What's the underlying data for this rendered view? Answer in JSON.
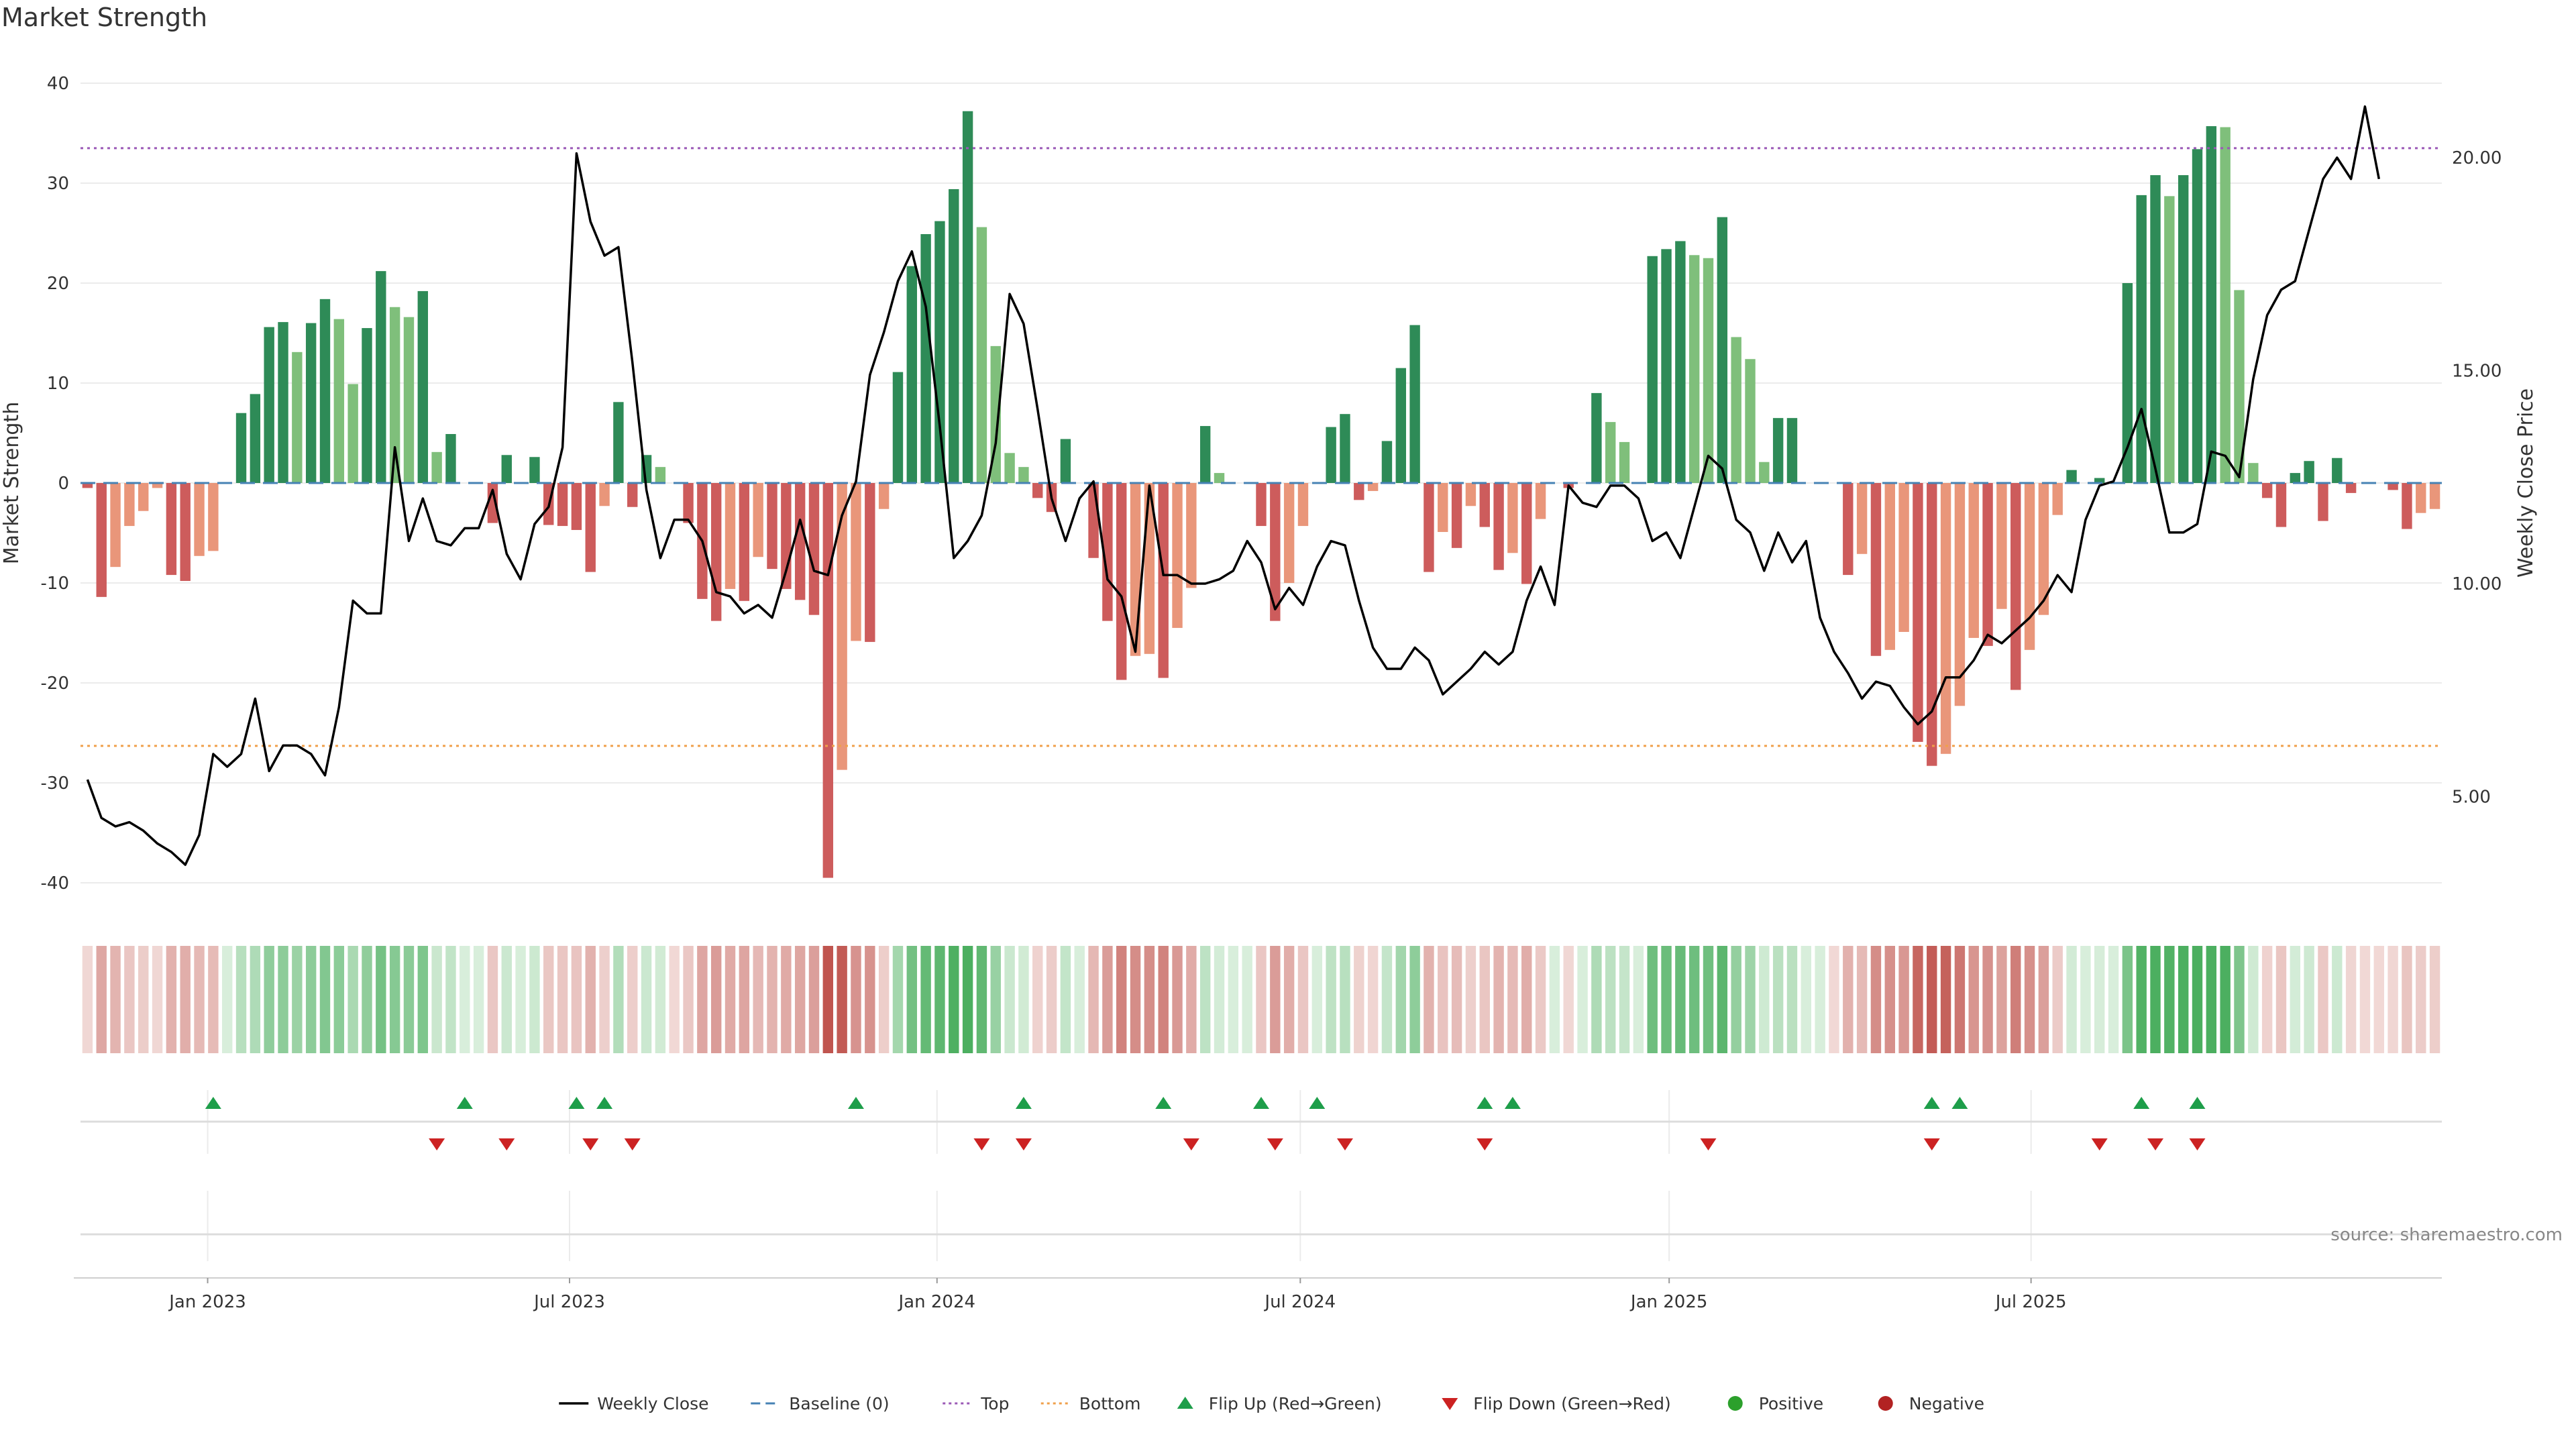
{
  "title": "Market Strength",
  "source": "source: sharemaestro.com",
  "colors": {
    "strong_green": "#2e8b57",
    "light_green": "#7fbf7b",
    "strong_red": "#cd5c5c",
    "light_red": "#e9967a",
    "price_line": "#000000",
    "baseline": "#4682b4",
    "top": "#9b59b6",
    "bottom": "#f0a04b",
    "flip_up": "#1e9e4a",
    "flip_down": "#cc2222",
    "positive": "#2ca02c",
    "negative": "#b22222"
  },
  "legend": [
    {
      "key": "weekly_close",
      "label": "Weekly Close",
      "kind": "line",
      "color": "#000000"
    },
    {
      "key": "baseline",
      "label": "Baseline (0)",
      "kind": "dash",
      "color": "#4682b4"
    },
    {
      "key": "top",
      "label": "Top",
      "kind": "dot",
      "color": "#9b59b6"
    },
    {
      "key": "bottom",
      "label": "Bottom",
      "kind": "dot",
      "color": "#f0a04b"
    },
    {
      "key": "flip_up",
      "label": "Flip Up (Red→Green)",
      "kind": "tri-up",
      "color": "#1e9e4a"
    },
    {
      "key": "flip_down",
      "label": "Flip Down (Green→Red)",
      "kind": "tri-down",
      "color": "#cc2222"
    },
    {
      "key": "positive",
      "label": "Positive",
      "kind": "circle",
      "color": "#2ca02c"
    },
    {
      "key": "negative",
      "label": "Negative",
      "kind": "circle",
      "color": "#b22222"
    }
  ],
  "chart_data": {
    "type": "bar",
    "title": "Market Strength",
    "ylabel": "Market Strength",
    "y2label": "Weekly Close Price",
    "ylim": [
      -43,
      44
    ],
    "y_ticks": [
      40,
      30,
      20,
      10,
      0,
      -10,
      -20,
      -30,
      -40
    ],
    "y2lim": [
      2.6,
      22.3
    ],
    "y2_ticks": [
      {
        "value": 20,
        "label": "20.00"
      },
      {
        "value": 15,
        "label": "15.00"
      },
      {
        "value": 10,
        "label": "10.00"
      },
      {
        "value": 5,
        "label": "5.00"
      }
    ],
    "x_ticks": [
      {
        "week": 8.6,
        "label": "Jan 2023"
      },
      {
        "week": 34.5,
        "label": "Jul 2023"
      },
      {
        "week": 60.8,
        "label": "Jan 2024"
      },
      {
        "week": 86.8,
        "label": "Jul 2024"
      },
      {
        "week": 113.2,
        "label": "Jan 2025"
      },
      {
        "week": 139.1,
        "label": "Jul 2025"
      }
    ],
    "top_threshold": 33.5,
    "bottom_threshold": -26.3,
    "grid": true,
    "legend_position": "bottom",
    "series": [
      {
        "name": "Market Strength",
        "values": [
          -0.5,
          -11.4,
          -8.4,
          -4.3,
          -2.8,
          -0.5,
          -9.2,
          -9.8,
          -7.3,
          -6.8,
          0,
          7.0,
          8.9,
          15.6,
          16.1,
          13.1,
          16.0,
          18.4,
          16.4,
          9.9,
          15.5,
          21.2,
          17.6,
          16.6,
          19.2,
          3.1,
          4.9,
          0,
          0,
          -4.0,
          2.8,
          0.2,
          2.6,
          -4.2,
          -4.3,
          -4.7,
          -8.9,
          -2.3,
          8.1,
          -2.4,
          2.8,
          1.6,
          -0.3,
          -4.0,
          -11.6,
          -13.8,
          -10.6,
          -11.8,
          -7.4,
          -8.6,
          -10.6,
          -11.7,
          -13.2,
          -39.5,
          -28.7,
          -15.8,
          -15.9,
          -2.6,
          11.1,
          21.7,
          24.9,
          26.2,
          29.4,
          37.2,
          25.6,
          13.7,
          3.0,
          1.6,
          -1.5,
          -2.9,
          4.4,
          0,
          -7.5,
          -13.8,
          -19.7,
          -17.3,
          -17.1,
          -19.5,
          -14.5,
          -10.5,
          5.7,
          1.0,
          0,
          0,
          -4.3,
          -13.8,
          -10.0,
          -4.3,
          0,
          5.6,
          6.9,
          -1.7,
          -0.8,
          4.2,
          11.5,
          15.8,
          -8.9,
          -4.9,
          -6.5,
          -2.3,
          -4.4,
          -8.7,
          -7.0,
          -10.1,
          -3.6,
          0,
          -0.5,
          0,
          9.0,
          6.1,
          4.1,
          0,
          22.7,
          23.4,
          24.2,
          22.8,
          22.5,
          26.6,
          14.6,
          12.4,
          2.1,
          6.5,
          6.5,
          0,
          0,
          -0.3,
          -9.2,
          -7.1,
          -17.3,
          -16.7,
          -14.9,
          -25.9,
          -28.3,
          -27.1,
          -22.3,
          -15.5,
          -16.3,
          -12.6,
          -20.7,
          -16.7,
          -13.2,
          -3.2,
          1.3,
          0,
          0.5,
          0,
          20.0,
          28.8,
          30.8,
          28.7,
          30.8,
          33.4,
          35.7,
          35.6,
          19.3,
          2.0,
          -1.5,
          -4.4,
          1.0,
          2.2,
          -3.8,
          2.5,
          -1.0,
          -0.3,
          -0.3,
          -0.7,
          -4.6,
          -3.0,
          -2.6
        ]
      },
      {
        "name": "Weekly Close",
        "values": [
          5.4,
          4.5,
          4.3,
          4.4,
          4.2,
          3.9,
          3.7,
          3.4,
          4.1,
          6.0,
          5.7,
          6.0,
          7.3,
          5.6,
          6.2,
          6.2,
          6.0,
          5.5,
          7.1,
          9.6,
          9.3,
          9.3,
          13.2,
          11.0,
          12.0,
          11.0,
          10.9,
          11.3,
          11.3,
          12.2,
          10.7,
          10.1,
          11.4,
          11.8,
          13.2,
          20.1,
          18.5,
          17.7,
          17.9,
          15.2,
          12.2,
          10.6,
          11.5,
          11.5,
          11.0,
          9.8,
          9.7,
          9.3,
          9.5,
          9.2,
          10.3,
          11.5,
          10.3,
          10.2,
          11.6,
          12.4,
          14.9,
          15.9,
          17.1,
          17.8,
          16.5,
          13.7,
          10.6,
          11.0,
          11.6,
          13.3,
          16.8,
          16.1,
          14.1,
          12.0,
          11.0,
          12.0,
          12.4,
          10.1,
          9.7,
          8.4,
          12.3,
          10.2,
          10.2,
          10.0,
          10.0,
          10.1,
          10.3,
          11.0,
          10.5,
          9.4,
          9.9,
          9.5,
          10.4,
          11.0,
          10.9,
          9.6,
          8.5,
          8.0,
          8.0,
          8.5,
          8.2,
          7.4,
          7.7,
          8.0,
          8.4,
          8.1,
          8.4,
          9.6,
          10.4,
          9.5,
          12.3,
          11.9,
          11.8,
          12.3,
          12.3,
          12.0,
          11.0,
          11.2,
          10.6,
          11.8,
          13.0,
          12.7,
          11.5,
          11.2,
          10.3,
          11.2,
          10.5,
          11.0,
          9.2,
          8.4,
          7.9,
          7.3,
          7.7,
          7.6,
          7.1,
          6.7,
          7.0,
          7.8,
          7.8,
          8.2,
          8.8,
          8.6,
          8.9,
          9.2,
          9.6,
          10.2,
          9.8,
          11.5,
          12.3,
          12.4,
          13.2,
          14.1,
          12.7,
          11.2,
          11.2,
          11.4,
          13.1,
          13.0,
          12.5,
          14.8,
          16.3,
          16.9,
          17.1,
          18.3,
          19.5,
          20.0,
          19.5,
          21.2,
          19.5
        ]
      }
    ],
    "flip_up_weeks": [
      9,
      27,
      35,
      37,
      55,
      67,
      77,
      84,
      88,
      100,
      102,
      132,
      134,
      147,
      151
    ],
    "flip_down_weeks": [
      25,
      30,
      36,
      39,
      64,
      67,
      79,
      85,
      90,
      100,
      116,
      132,
      144,
      148,
      151
    ]
  }
}
